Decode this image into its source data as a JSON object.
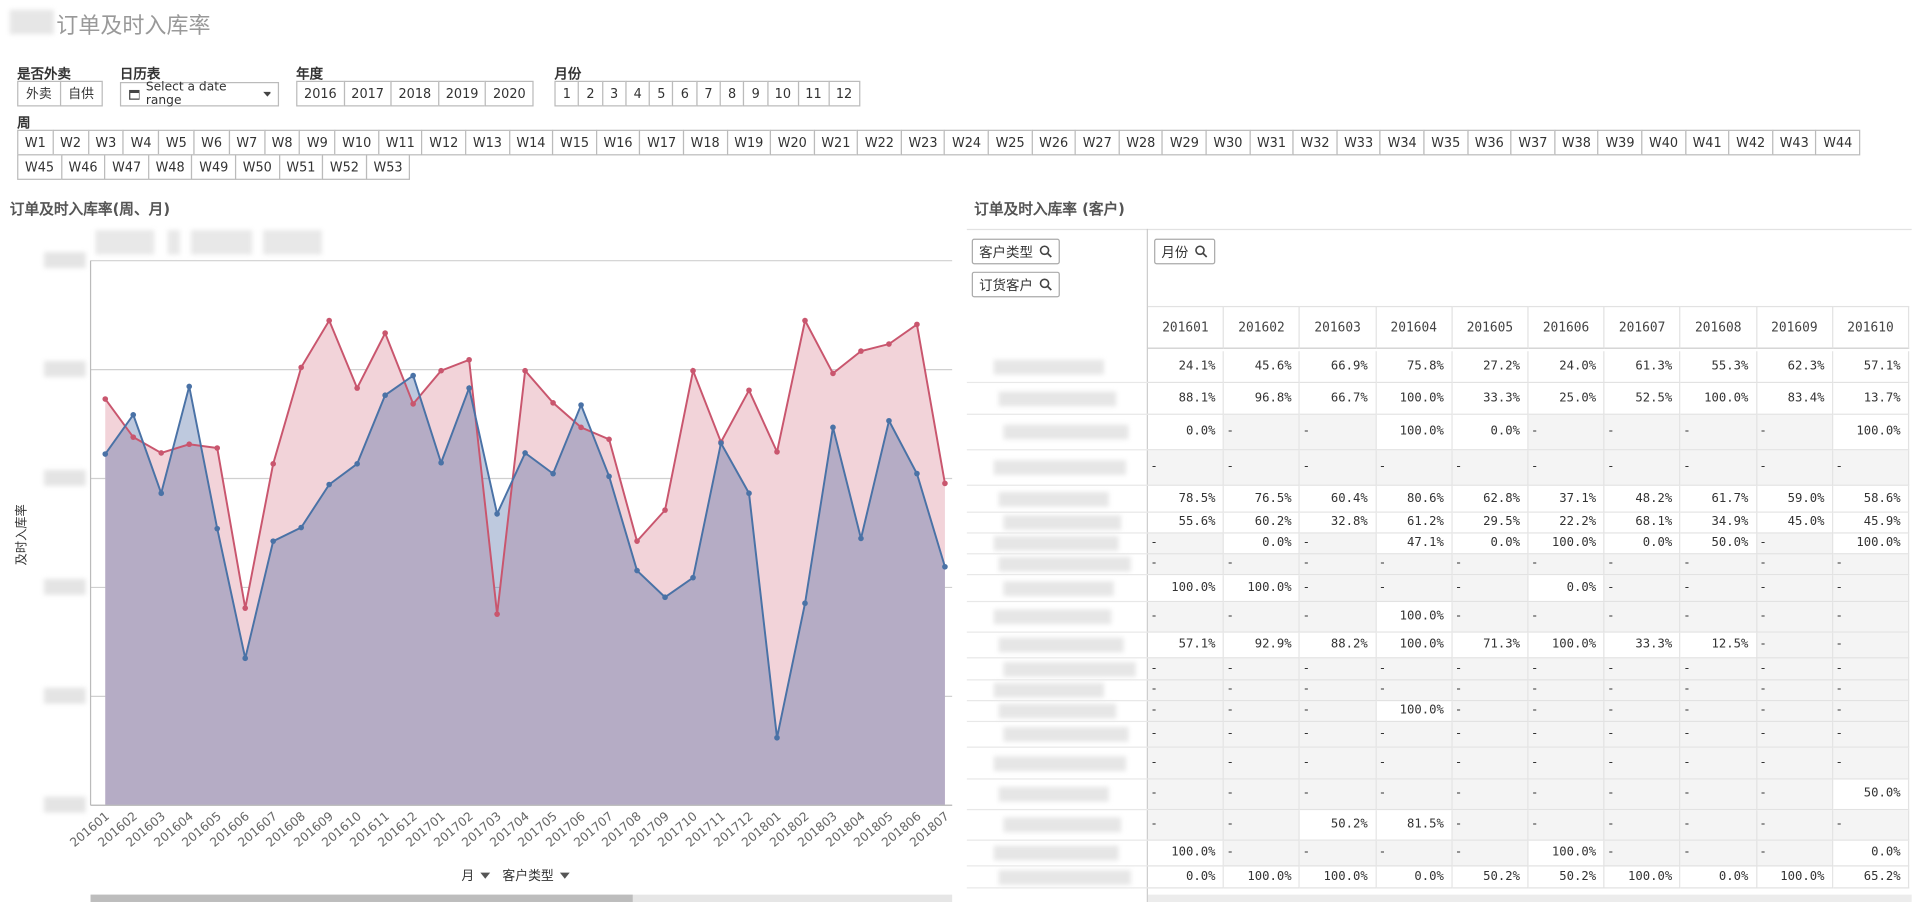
{
  "header": {
    "title": "订单及时入库率"
  },
  "filters": [
    {
      "label": "是否外卖",
      "options": [
        "外卖",
        "自供"
      ]
    },
    {
      "label": "日历表",
      "placeholder": "Select a date range"
    },
    {
      "label": "年度",
      "options": [
        "2016",
        "2017",
        "2018",
        "2019",
        "2020"
      ]
    },
    {
      "label": "月份",
      "options": [
        "1",
        "2",
        "3",
        "4",
        "5",
        "6",
        "7",
        "8",
        "9",
        "10",
        "11",
        "12"
      ]
    },
    {
      "label": "周",
      "options": [
        "W1",
        "W2",
        "W3",
        "W4",
        "W5",
        "W6",
        "W7",
        "W8",
        "W9",
        "W10",
        "W11",
        "W12",
        "W13",
        "W14",
        "W15",
        "W16",
        "W17",
        "W18",
        "W19",
        "W20",
        "W21",
        "W22",
        "W23",
        "W24",
        "W25",
        "W26",
        "W27",
        "W28",
        "W29",
        "W30",
        "W31",
        "W32",
        "W33",
        "W34",
        "W35",
        "W36",
        "W37",
        "W38",
        "W39",
        "W40",
        "W41",
        "W42",
        "W43",
        "W44",
        "W45",
        "W46",
        "W47",
        "W48",
        "W49",
        "W50",
        "W51",
        "W52",
        "W53"
      ]
    }
  ],
  "chart_data": {
    "type": "area",
    "title": "订单及时入库率(周、月)",
    "y_label": "及时入库率",
    "x_dimensions": [
      "月",
      "客户类型"
    ],
    "categories": [
      "201601",
      "201602",
      "201603",
      "201604",
      "201605",
      "201606",
      "201607",
      "201608",
      "201609",
      "201610",
      "201611",
      "201612",
      "201701",
      "201702",
      "201703",
      "201704",
      "201705",
      "201706",
      "201707",
      "201708",
      "201709",
      "201710",
      "201711",
      "201712",
      "201801",
      "201802",
      "201803",
      "201804",
      "201805",
      "201806",
      "201807"
    ],
    "series": [
      {
        "color": "#c9566e",
        "fill": "#f2d3d9",
        "values": [
          74.6,
          67.6,
          64.7,
          66.3,
          65.6,
          36.2,
          62.7,
          80.4,
          89.0,
          76.6,
          86.7,
          73.7,
          79.8,
          81.8,
          35.1,
          79.8,
          73.9,
          69.4,
          67.2,
          48.5,
          54.2,
          79.8,
          66.7,
          76.2,
          64.9,
          89.0,
          79.3,
          83.4,
          84.7,
          88.3,
          59.1
        ]
      },
      {
        "color": "#4a72a6",
        "fill": "rgba(70,100,160,0.35)",
        "values": [
          64.5,
          71.7,
          57.3,
          76.9,
          50.8,
          27.0,
          48.5,
          51.0,
          58.9,
          62.7,
          75.3,
          78.9,
          62.9,
          76.6,
          53.5,
          64.7,
          60.9,
          73.5,
          60.4,
          43.1,
          38.2,
          41.8,
          66.5,
          57.3,
          12.4,
          37.1,
          69.4,
          49.0,
          70.6,
          60.9,
          43.8
        ]
      }
    ],
    "ylim": [
      0,
      100
    ],
    "yticks": [
      0,
      20,
      40,
      60,
      80,
      100
    ],
    "grid": true
  },
  "table": {
    "title": "订单及时入库率 (客户)",
    "row_dimensions": [
      "客户类型",
      "订货客户"
    ],
    "column_dimension": "月份",
    "columns": [
      "201601",
      "201602",
      "201603",
      "201604",
      "201605",
      "201606",
      "201607",
      "201608",
      "201609",
      "201610"
    ],
    "rows": [
      [
        "24.1%",
        "45.6%",
        "66.9%",
        "75.8%",
        "27.2%",
        "24.0%",
        "61.3%",
        "55.3%",
        "62.3%",
        "57.1%"
      ],
      [
        "88.1%",
        "96.8%",
        "66.7%",
        "100.0%",
        "33.3%",
        "25.0%",
        "52.5%",
        "100.0%",
        "83.4%",
        "13.7%"
      ],
      [
        "0.0%",
        "-",
        "-",
        "100.0%",
        "0.0%",
        "-",
        "-",
        "-",
        "-",
        "100.0%"
      ],
      [
        "-",
        "-",
        "-",
        "-",
        "-",
        "-",
        "-",
        "-",
        "-",
        "-"
      ],
      [
        "78.5%",
        "76.5%",
        "60.4%",
        "80.6%",
        "62.8%",
        "37.1%",
        "48.2%",
        "61.7%",
        "59.0%",
        "58.6%"
      ],
      [
        "55.6%",
        "60.2%",
        "32.8%",
        "61.2%",
        "29.5%",
        "22.2%",
        "68.1%",
        "34.9%",
        "45.0%",
        "45.9%"
      ],
      [
        "-",
        "0.0%",
        "-",
        "47.1%",
        "0.0%",
        "100.0%",
        "0.0%",
        "50.0%",
        "-",
        "100.0%"
      ],
      [
        "-",
        "-",
        "-",
        "-",
        "-",
        "-",
        "-",
        "-",
        "-",
        "-"
      ],
      [
        "100.0%",
        "100.0%",
        "-",
        "-",
        "-",
        "0.0%",
        "-",
        "-",
        "-",
        "-"
      ],
      [
        "-",
        "-",
        "-",
        "100.0%",
        "-",
        "-",
        "-",
        "-",
        "-",
        "-"
      ],
      [
        "57.1%",
        "92.9%",
        "88.2%",
        "100.0%",
        "71.3%",
        "100.0%",
        "33.3%",
        "12.5%",
        "-",
        "-"
      ],
      [
        "-",
        "-",
        "-",
        "-",
        "-",
        "-",
        "-",
        "-",
        "-",
        "-"
      ],
      [
        "-",
        "-",
        "-",
        "-",
        "-",
        "-",
        "-",
        "-",
        "-",
        "-"
      ],
      [
        "-",
        "-",
        "-",
        "100.0%",
        "-",
        "-",
        "-",
        "-",
        "-",
        "-"
      ],
      [
        "-",
        "-",
        "-",
        "-",
        "-",
        "-",
        "-",
        "-",
        "-",
        "-"
      ],
      [
        "-",
        "-",
        "-",
        "-",
        "-",
        "-",
        "-",
        "-",
        "-",
        "-"
      ],
      [
        "-",
        "-",
        "-",
        "-",
        "-",
        "-",
        "-",
        "-",
        "-",
        "50.0%"
      ],
      [
        "-",
        "-",
        "50.2%",
        "81.5%",
        "-",
        "-",
        "-",
        "-",
        "-",
        "-"
      ],
      [
        "100.0%",
        "-",
        "-",
        "-",
        "-",
        "100.0%",
        "-",
        "-",
        "-",
        "0.0%"
      ],
      [
        "0.0%",
        "100.0%",
        "100.0%",
        "0.0%",
        "50.2%",
        "50.2%",
        "100.0%",
        "0.0%",
        "100.0%",
        "65.2%"
      ]
    ]
  }
}
